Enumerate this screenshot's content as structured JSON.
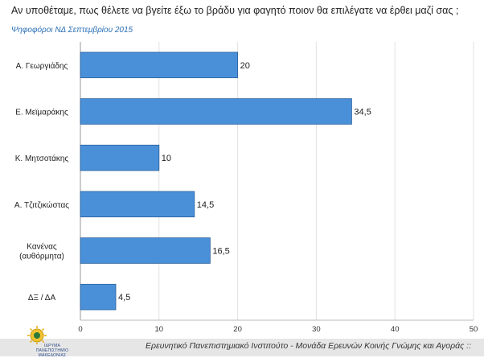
{
  "header": {
    "title": "Αν υποθέταμε, πως θέλετε να βγείτε έξω το βράδυ για φαγητό ποιον θα επιλέγατε να έρθει μαζί σας ;",
    "subtitle": "Ψηφοφόροι ΝΔ Σεπτεμβρίου 2015"
  },
  "chart_data": {
    "type": "bar",
    "orientation": "horizontal",
    "title": "Αν υποθέταμε, πως θέλετε να βγείτε έξω το βράδυ για φαγητό ποιον θα επιλέγατε να έρθει μαζί σας ;",
    "subtitle": "Ψηφοφόροι ΝΔ Σεπτεμβρίου 2015",
    "categories": [
      [
        "Α. Γεωργιάδης"
      ],
      [
        "Ε. Μεϊμαράκης"
      ],
      [
        "Κ. Μητσοτάκης"
      ],
      [
        "Α. Τζιτζικώστας"
      ],
      [
        "Κανένας",
        "(αυθόρμητα)"
      ],
      [
        "ΔΞ / ΔΑ"
      ]
    ],
    "values": [
      20,
      34.5,
      10,
      14.5,
      16.5,
      4.5
    ],
    "value_labels": [
      "20",
      "34,5",
      "10",
      "14,5",
      "16,5",
      "4,5"
    ],
    "xlim": [
      0,
      50
    ],
    "xticks": [
      0,
      10,
      20,
      30,
      40,
      50
    ],
    "grid": true,
    "legend": "none",
    "bar_color": "#4a90d9",
    "bar_border_color": "#2a5f99"
  },
  "footer": {
    "source": "Ερευνητικό Πανεπιστημιακό Ινστιτούτο - Μονάδα Ερευνών Κοινής Γνώμης και Αγοράς ::",
    "logo_lines": [
      "ΙΔΡΥΜΑ",
      "ΠΑΝΕΠΙΣΤΗΜΙΟ",
      "ΜΑΚΕΔΟΝΙΑΣ"
    ]
  },
  "colors": {
    "footer_band": "#e6e6e6",
    "subtitle": "#2a6fb5",
    "grid": "#e0e0e0"
  }
}
